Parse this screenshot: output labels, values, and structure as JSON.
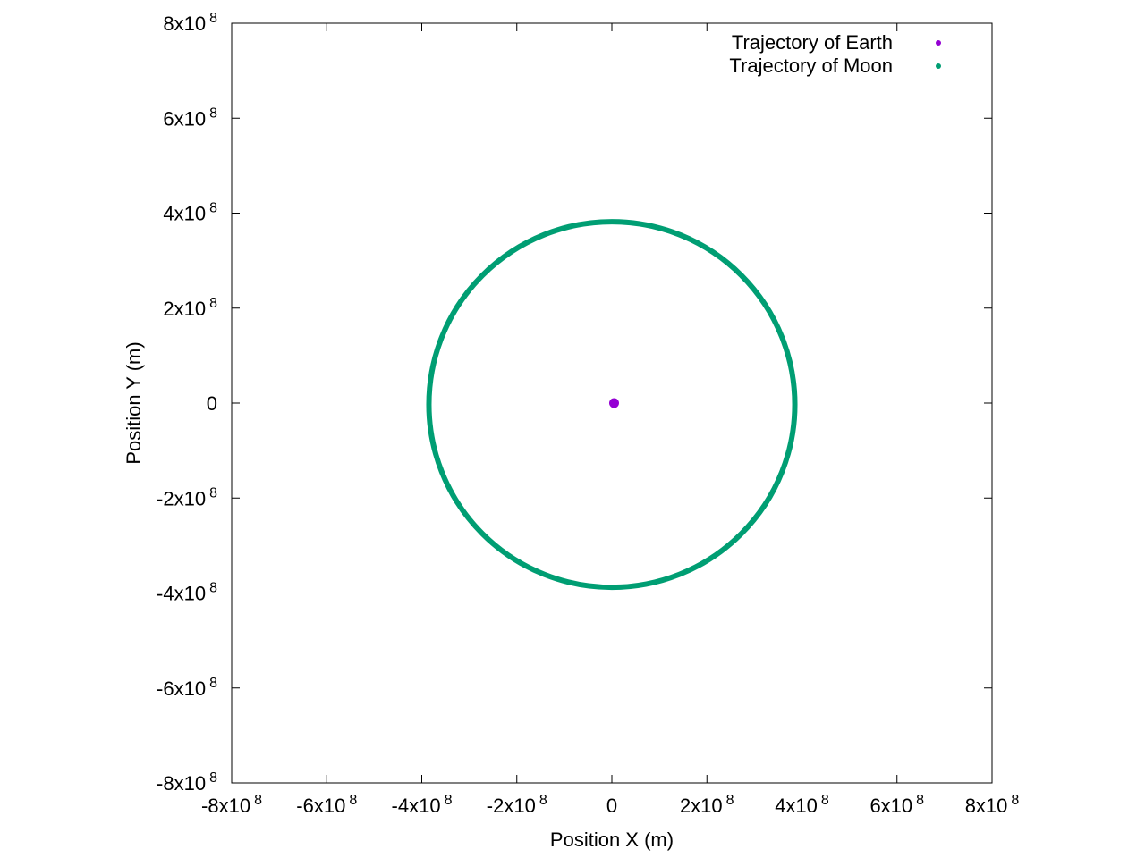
{
  "chart_data": {
    "type": "scatter",
    "title": "",
    "xlabel": "Position X (m)",
    "ylabel": "Position Y (m)",
    "xlim": [
      -800000000,
      800000000
    ],
    "ylim": [
      -800000000,
      800000000
    ],
    "grid": false,
    "legend_position": "top-right",
    "x_ticks": [
      {
        "value": -800000000,
        "mantissa": "-8x10",
        "exponent": "8"
      },
      {
        "value": -600000000,
        "mantissa": "-6x10",
        "exponent": "8"
      },
      {
        "value": -400000000,
        "mantissa": "-4x10",
        "exponent": "8"
      },
      {
        "value": -200000000,
        "mantissa": "-2x10",
        "exponent": "8"
      },
      {
        "value": 0,
        "mantissa": "0",
        "exponent": ""
      },
      {
        "value": 200000000,
        "mantissa": "2x10",
        "exponent": "8"
      },
      {
        "value": 400000000,
        "mantissa": "4x10",
        "exponent": "8"
      },
      {
        "value": 600000000,
        "mantissa": "6x10",
        "exponent": "8"
      },
      {
        "value": 800000000,
        "mantissa": "8x10",
        "exponent": "8"
      }
    ],
    "y_ticks": [
      {
        "value": 800000000,
        "mantissa": "8x10",
        "exponent": "8"
      },
      {
        "value": 600000000,
        "mantissa": "6x10",
        "exponent": "8"
      },
      {
        "value": 400000000,
        "mantissa": "4x10",
        "exponent": "8"
      },
      {
        "value": 200000000,
        "mantissa": "2x10",
        "exponent": "8"
      },
      {
        "value": 0,
        "mantissa": "0",
        "exponent": ""
      },
      {
        "value": -200000000,
        "mantissa": "-2x10",
        "exponent": "8"
      },
      {
        "value": -400000000,
        "mantissa": "-4x10",
        "exponent": "8"
      },
      {
        "value": -600000000,
        "mantissa": "-6x10",
        "exponent": "8"
      },
      {
        "value": -800000000,
        "mantissa": "-8x10",
        "exponent": "8"
      }
    ],
    "series": [
      {
        "name": "Trajectory of Earth",
        "color": "#9400d3",
        "shape": "point cluster",
        "center": [
          4700000,
          0
        ],
        "radius": 4700000
      },
      {
        "name": "Trajectory of Moon",
        "color": "#009e73",
        "shape": "circular orbit",
        "center": [
          0,
          -3000000
        ],
        "radius": 385000000
      }
    ]
  }
}
